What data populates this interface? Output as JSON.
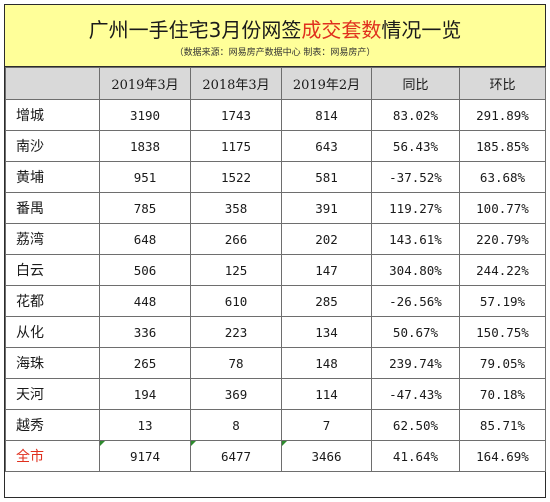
{
  "title": {
    "part1": "广州一手住宅3月份网签",
    "highlight": "成交套数",
    "part2": "情况一览"
  },
  "subtitle": "（数据来源：网易房产数据中心  制表：网易房产）",
  "colors": {
    "title_band": "#ffff99",
    "highlight": "#e0301e",
    "header_bg": "#d9d9d9",
    "marker": "#2e8b2e"
  },
  "table": {
    "headers": [
      "",
      "2019年3月",
      "2018年3月",
      "2019年2月",
      "同比",
      "环比"
    ],
    "rows": [
      [
        "增城",
        "3190",
        "1743",
        "814",
        "83.02%",
        "291.89%"
      ],
      [
        "南沙",
        "1838",
        "1175",
        "643",
        "56.43%",
        "185.85%"
      ],
      [
        "黄埔",
        "951",
        "1522",
        "581",
        "-37.52%",
        "63.68%"
      ],
      [
        "番禺",
        "785",
        "358",
        "391",
        "119.27%",
        "100.77%"
      ],
      [
        "荔湾",
        "648",
        "266",
        "202",
        "143.61%",
        "220.79%"
      ],
      [
        "白云",
        "506",
        "125",
        "147",
        "304.80%",
        "244.22%"
      ],
      [
        "花都",
        "448",
        "610",
        "285",
        "-26.56%",
        "57.19%"
      ],
      [
        "从化",
        "336",
        "223",
        "134",
        "50.67%",
        "150.75%"
      ],
      [
        "海珠",
        "265",
        "78",
        "148",
        "239.74%",
        "79.05%"
      ],
      [
        "天河",
        "194",
        "369",
        "114",
        "-47.43%",
        "70.18%"
      ],
      [
        "越秀",
        "13",
        "8",
        "7",
        "62.50%",
        "85.71%"
      ]
    ],
    "total": [
      "全市",
      "9174",
      "6477",
      "3466",
      "41.64%",
      "164.69%"
    ]
  }
}
